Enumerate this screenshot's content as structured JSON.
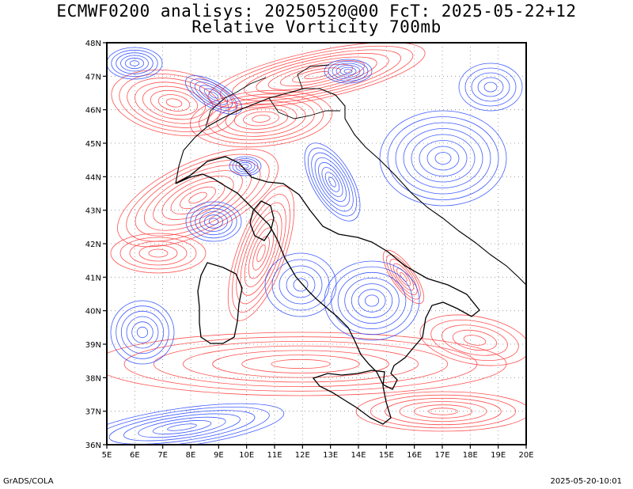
{
  "header": {
    "title_line1": "ECMWF0200 analisys: 20250520@00 FcT: 2025-05-22+12",
    "title_line2": "Relative Vorticity 700mb"
  },
  "axes": {
    "lat_labels": [
      "48N",
      "47N",
      "46N",
      "45N",
      "44N",
      "43N",
      "42N",
      "41N",
      "40N",
      "39N",
      "38N",
      "37N",
      "36N"
    ],
    "lon_labels": [
      "5E",
      "6E",
      "7E",
      "8E",
      "9E",
      "10E",
      "11E",
      "12E",
      "13E",
      "14E",
      "15E",
      "16E",
      "17E",
      "18E",
      "19E",
      "20E"
    ],
    "lat_range": [
      36,
      48
    ],
    "lon_range": [
      5,
      20
    ]
  },
  "map": {
    "positive_color": "#ff3333",
    "negative_color": "#1f3fff",
    "coast_color": "#000000",
    "grid_color": "#888888"
  },
  "footer": {
    "left": "GrADS/COLA",
    "right": "2025-05-20-10:01"
  }
}
